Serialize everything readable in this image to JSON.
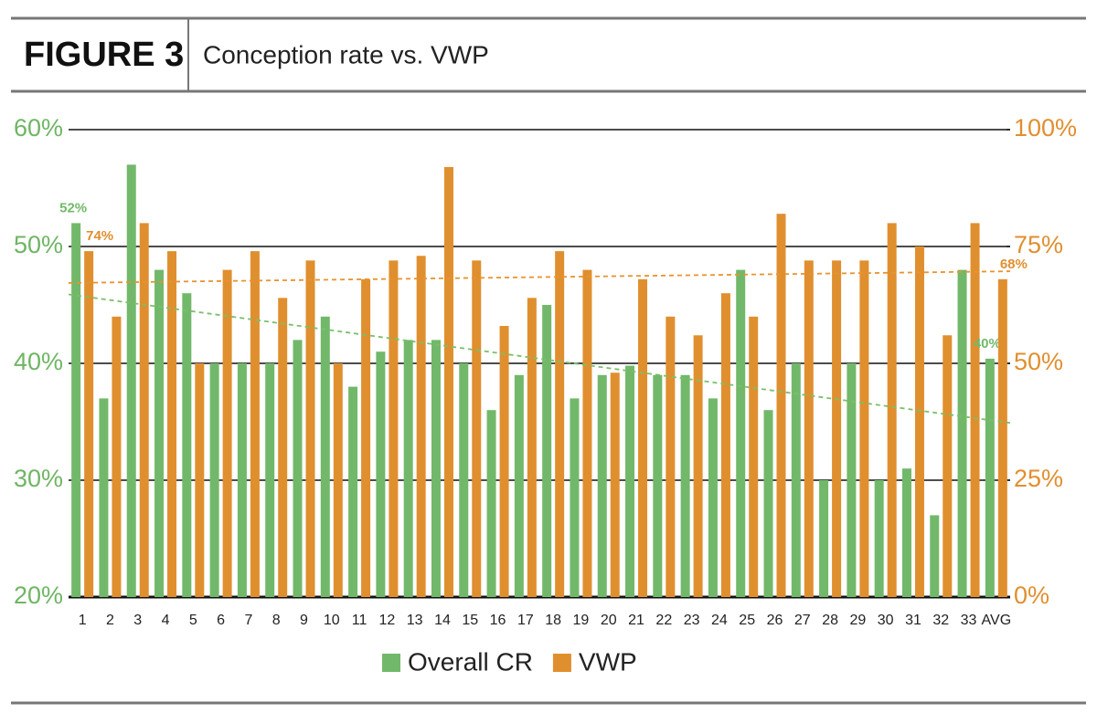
{
  "chart_data": {
    "type": "bar",
    "figure_label": "FIGURE 3",
    "title": "Conception rate vs. VWP",
    "categories": [
      "1",
      "2",
      "3",
      "4",
      "5",
      "6",
      "7",
      "8",
      "9",
      "10",
      "11",
      "12",
      "13",
      "14",
      "15",
      "16",
      "17",
      "18",
      "19",
      "20",
      "21",
      "22",
      "23",
      "24",
      "25",
      "26",
      "27",
      "28",
      "29",
      "30",
      "31",
      "32",
      "33",
      "AVG"
    ],
    "series": [
      {
        "name": "Overall CR",
        "color": "#72b86a",
        "axis": "y",
        "values": [
          52,
          37,
          57,
          48,
          46,
          40,
          40,
          40,
          42,
          44,
          38,
          41,
          42,
          42,
          40,
          36,
          39,
          45,
          37,
          39,
          39.8,
          39,
          39,
          37,
          48,
          36,
          40,
          30,
          40,
          30,
          31,
          27,
          48,
          40.4
        ],
        "value_labels": [
          "52%",
          null,
          null,
          null,
          null,
          null,
          null,
          null,
          null,
          null,
          null,
          null,
          null,
          null,
          null,
          null,
          null,
          null,
          null,
          null,
          null,
          null,
          null,
          null,
          null,
          null,
          null,
          null,
          null,
          null,
          null,
          null,
          null,
          "40%"
        ]
      },
      {
        "name": "VWP",
        "color": "#e08f2f",
        "axis": "y2",
        "values": [
          74,
          60,
          80,
          74,
          50,
          70,
          74,
          64,
          72,
          50,
          68,
          72,
          73,
          92,
          72,
          58,
          64,
          74,
          70,
          48,
          68,
          60,
          56,
          65,
          60,
          82,
          72,
          72,
          72,
          80,
          75,
          56,
          80,
          68
        ],
        "value_labels": [
          "74%",
          null,
          null,
          null,
          null,
          null,
          null,
          null,
          null,
          null,
          null,
          null,
          null,
          null,
          null,
          null,
          null,
          null,
          null,
          null,
          null,
          null,
          null,
          null,
          null,
          null,
          null,
          null,
          null,
          null,
          null,
          null,
          null,
          "68%"
        ]
      }
    ],
    "trendlines": [
      {
        "axis": "y",
        "color": "#7bbf6a",
        "start": 45.9,
        "end": 34.9
      },
      {
        "axis": "y2",
        "color": "#e8932e",
        "start": 67.2,
        "end": 69.7
      }
    ],
    "ylim": [
      20,
      60
    ],
    "yticks": [
      {
        "value": 20,
        "label": "20%"
      },
      {
        "value": 30,
        "label": "30%"
      },
      {
        "value": 40,
        "label": "40%"
      },
      {
        "value": 50,
        "label": "50%"
      },
      {
        "value": 60,
        "label": "60%"
      }
    ],
    "y2lim": [
      0,
      100
    ],
    "y2ticks": [
      {
        "value": 0,
        "label": "0%"
      },
      {
        "value": 25,
        "label": "25%"
      },
      {
        "value": 50,
        "label": "50%"
      },
      {
        "value": 75,
        "label": "75%"
      },
      {
        "value": 100,
        "label": "100%"
      }
    ],
    "grid": true,
    "legend": "bottom"
  }
}
